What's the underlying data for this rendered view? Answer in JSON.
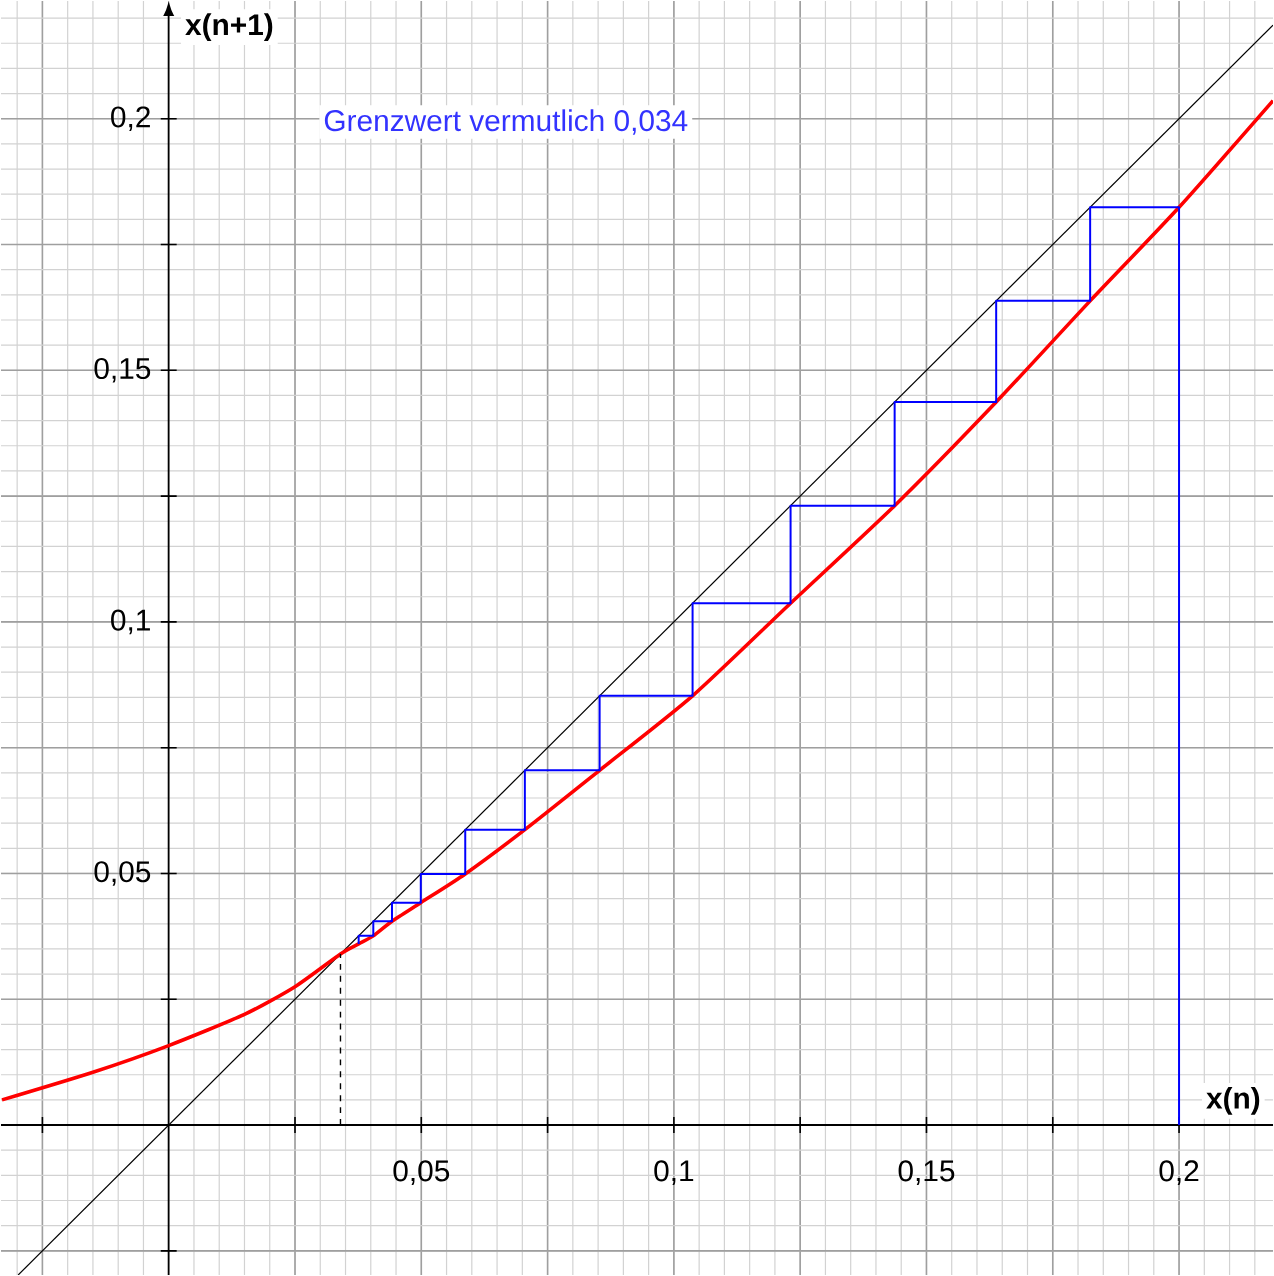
{
  "chart_data": {
    "type": "line",
    "xlabel": "x(n)",
    "ylabel": "x(n+1)",
    "annotations": [
      "Grenzwert vermutlich 0,034"
    ],
    "xlim": [
      -0.0332,
      0.2186
    ],
    "ylim": [
      -0.0298,
      0.2234
    ],
    "xticks": [
      {
        "value": -0.025,
        "label": null
      },
      {
        "value": 0.025,
        "label": null
      },
      {
        "value": 0.05,
        "label": "0,05"
      },
      {
        "value": 0.075,
        "label": null
      },
      {
        "value": 0.1,
        "label": "0,1"
      },
      {
        "value": 0.125,
        "label": null
      },
      {
        "value": 0.15,
        "label": "0,15"
      },
      {
        "value": 0.175,
        "label": null
      },
      {
        "value": 0.2,
        "label": "0,2"
      }
    ],
    "yticks": [
      {
        "value": -0.025,
        "label": null
      },
      {
        "value": 0.025,
        "label": null
      },
      {
        "value": 0.05,
        "label": "0,05"
      },
      {
        "value": 0.075,
        "label": null
      },
      {
        "value": 0.1,
        "label": "0,1"
      },
      {
        "value": 0.125,
        "label": null
      },
      {
        "value": 0.15,
        "label": "0,15"
      },
      {
        "value": 0.175,
        "label": null
      },
      {
        "value": 0.2,
        "label": "0,2"
      }
    ],
    "grid": true,
    "marker": "none",
    "series": [
      {
        "color": "#000000",
        "line_style": "solid",
        "x": [
          -0.0298,
          0.2186
        ],
        "values": [
          -0.0298,
          0.2186
        ]
      },
      {
        "color": "#ff0000",
        "line_style": "solid",
        "x": [
          -0.033,
          -0.015,
          0,
          0.015,
          0.025,
          0.034,
          0.0376,
          0.0405,
          0.0442,
          0.0499,
          0.0587,
          0.0705,
          0.0853,
          0.1037,
          0.1231,
          0.1437,
          0.1638,
          0.1824,
          0.2,
          0.2186
        ],
        "values": [
          0.005,
          0.0105,
          0.0158,
          0.022,
          0.0275,
          0.034,
          0.036,
          0.0376,
          0.0405,
          0.0442,
          0.0499,
          0.0587,
          0.0705,
          0.0853,
          0.1037,
          0.1231,
          0.1437,
          0.1638,
          0.1824,
          0.2036
        ]
      },
      {
        "color": "#0000ff",
        "line_style": "solid",
        "x": [
          0.2,
          0.2,
          0.1824,
          0.1824,
          0.1638,
          0.1638,
          0.1437,
          0.1437,
          0.1231,
          0.1231,
          0.1037,
          0.1037,
          0.0853,
          0.0853,
          0.0705,
          0.0705,
          0.0587,
          0.0587,
          0.0499,
          0.0499,
          0.0442,
          0.0442,
          0.0405,
          0.0405,
          0.0376,
          0.0376
        ],
        "values": [
          0,
          0.1824,
          0.1824,
          0.1638,
          0.1638,
          0.1437,
          0.1437,
          0.1231,
          0.1231,
          0.1037,
          0.1037,
          0.0853,
          0.0853,
          0.0705,
          0.0705,
          0.0587,
          0.0587,
          0.0499,
          0.0499,
          0.0442,
          0.0442,
          0.0405,
          0.0405,
          0.0376,
          0.0376,
          0.036
        ]
      },
      {
        "color": "#000000",
        "line_style": "dashed",
        "x": [
          0.034,
          0.034
        ],
        "values": [
          0,
          0.034
        ]
      }
    ]
  }
}
